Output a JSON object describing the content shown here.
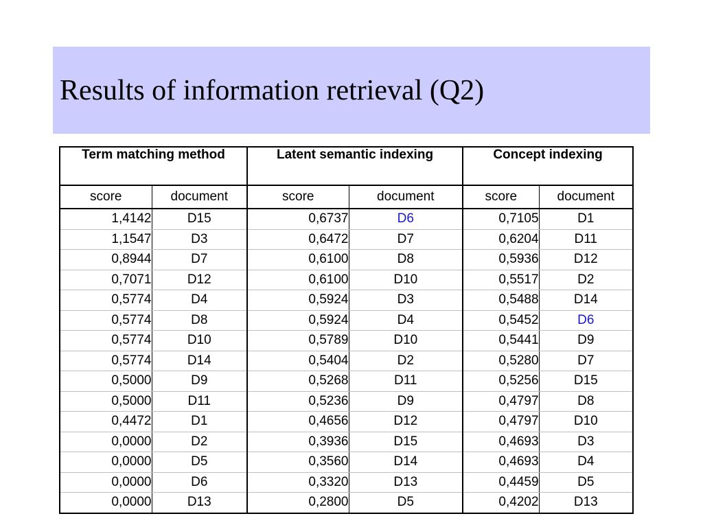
{
  "slide": {
    "title": "Results of information retrieval (Q2)"
  },
  "table": {
    "groups": [
      {
        "label": "Term matching method"
      },
      {
        "label": "Latent semantic indexing"
      },
      {
        "label": "Concept indexing"
      }
    ],
    "subheaders": {
      "score": "score",
      "document": "document"
    },
    "highlight_color": "#1a1acc",
    "highlight_document": "D6",
    "rows": [
      [
        "1,4142",
        "D15",
        "0,6737",
        "D6",
        "0,7105",
        "D1"
      ],
      [
        "1,1547",
        "D3",
        "0,6472",
        "D7",
        "0,6204",
        "D11"
      ],
      [
        "0,8944",
        "D7",
        "0,6100",
        "D8",
        "0,5936",
        "D12"
      ],
      [
        "0,7071",
        "D12",
        "0,6100",
        "D10",
        "0,5517",
        "D2"
      ],
      [
        "0,5774",
        "D4",
        "0,5924",
        "D3",
        "0,5488",
        "D14"
      ],
      [
        "0,5774",
        "D8",
        "0,5924",
        "D4",
        "0,5452",
        "D6"
      ],
      [
        "0,5774",
        "D10",
        "0,5789",
        "D10",
        "0,5441",
        "D9"
      ],
      [
        "0,5774",
        "D14",
        "0,5404",
        "D2",
        "0,5280",
        "D7"
      ],
      [
        "0,5000",
        "D9",
        "0,5268",
        "D11",
        "0,5256",
        "D15"
      ],
      [
        "0,5000",
        "D11",
        "0,5236",
        "D9",
        "0,4797",
        "D8"
      ],
      [
        "0,4472",
        "D1",
        "0,4656",
        "D12",
        "0,4797",
        "D10"
      ],
      [
        "0,0000",
        "D2",
        "0,3936",
        "D15",
        "0,4693",
        "D3"
      ],
      [
        "0,0000",
        "D5",
        "0,3560",
        "D14",
        "0,4693",
        "D4"
      ],
      [
        "0,0000",
        "D6",
        "0,3320",
        "D13",
        "0,4459",
        "D5"
      ],
      [
        "0,0000",
        "D13",
        "0,2800",
        "D5",
        "0,4202",
        "D13"
      ]
    ]
  }
}
